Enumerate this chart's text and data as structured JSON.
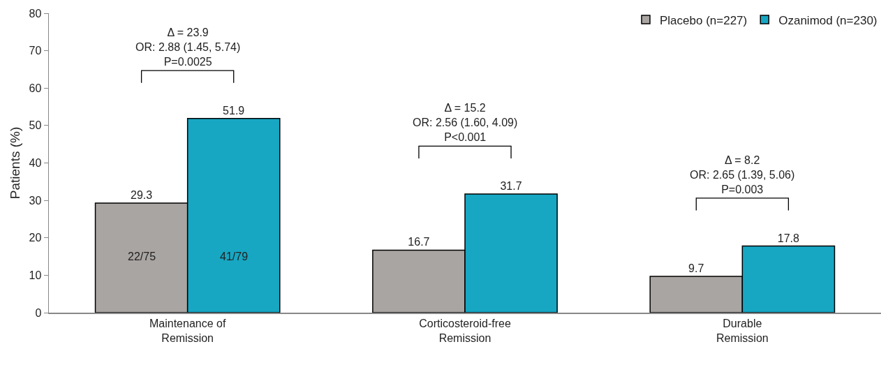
{
  "chart_data": {
    "type": "bar",
    "ylabel": "Patients (%)",
    "categories": [
      "Maintenance of Remission",
      "Corticosteroid-free Remission",
      "Durable Remission"
    ],
    "series": [
      {
        "name": "Placebo (n=227)",
        "color": "#a9a5a2",
        "values": [
          29.3,
          16.7,
          9.7
        ]
      },
      {
        "name": "Ozanimod (n=230)",
        "color": "#17a7c3",
        "values": [
          51.9,
          31.7,
          17.8
        ]
      }
    ],
    "data_labels": true,
    "ylim": [
      0,
      80
    ],
    "yticks": [
      0,
      10,
      20,
      30,
      40,
      50,
      60,
      70,
      80
    ],
    "grid": false,
    "legend": "top right",
    "annotations": [
      "Δ = 23.9\nOR: 2.88 (1.45, 5.74)\nP=0.0025",
      "Δ = 15.2\nOR: 2.56 (1.60, 4.09)\nP<0.001",
      "Δ = 8.2\nOR: 2.65 (1.39, 5.06)\nP=0.003",
      {
        "text": "22/75",
        "x": "Maintenance of Remission",
        "y": 15
      },
      {
        "text": "41/79",
        "x": "Maintenance of Remission",
        "y": 15
      }
    ]
  }
}
